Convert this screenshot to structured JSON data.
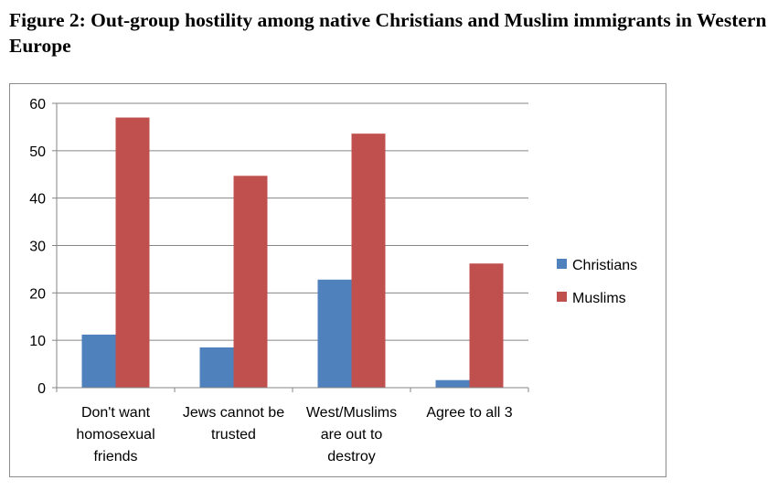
{
  "figure": {
    "title": "Figure 2: Out-group hostility among native Christians and Muslim immigrants in Western Europe"
  },
  "chart_data": {
    "type": "bar",
    "title": "",
    "xlabel": "",
    "ylabel": "",
    "ylim": [
      0,
      60
    ],
    "yticks": [
      0,
      10,
      20,
      30,
      40,
      50,
      60
    ],
    "grid": true,
    "legend_position": "right",
    "categories": [
      "Don't want homosexual friends",
      "Jews cannot be trusted",
      "West/Muslims are out to destroy",
      "Agree to all 3"
    ],
    "category_lines": [
      [
        "Don't want",
        "homosexual",
        "friends"
      ],
      [
        "Jews cannot be",
        "trusted"
      ],
      [
        "West/Muslims",
        "are out to",
        "destroy"
      ],
      [
        "Agree to all 3"
      ]
    ],
    "series": [
      {
        "name": "Christians",
        "color": "#4f81bd",
        "values": [
          11.2,
          8.5,
          22.8,
          1.6
        ]
      },
      {
        "name": "Muslims",
        "color": "#c0504d",
        "values": [
          57.0,
          44.7,
          53.6,
          26.2
        ]
      }
    ]
  }
}
